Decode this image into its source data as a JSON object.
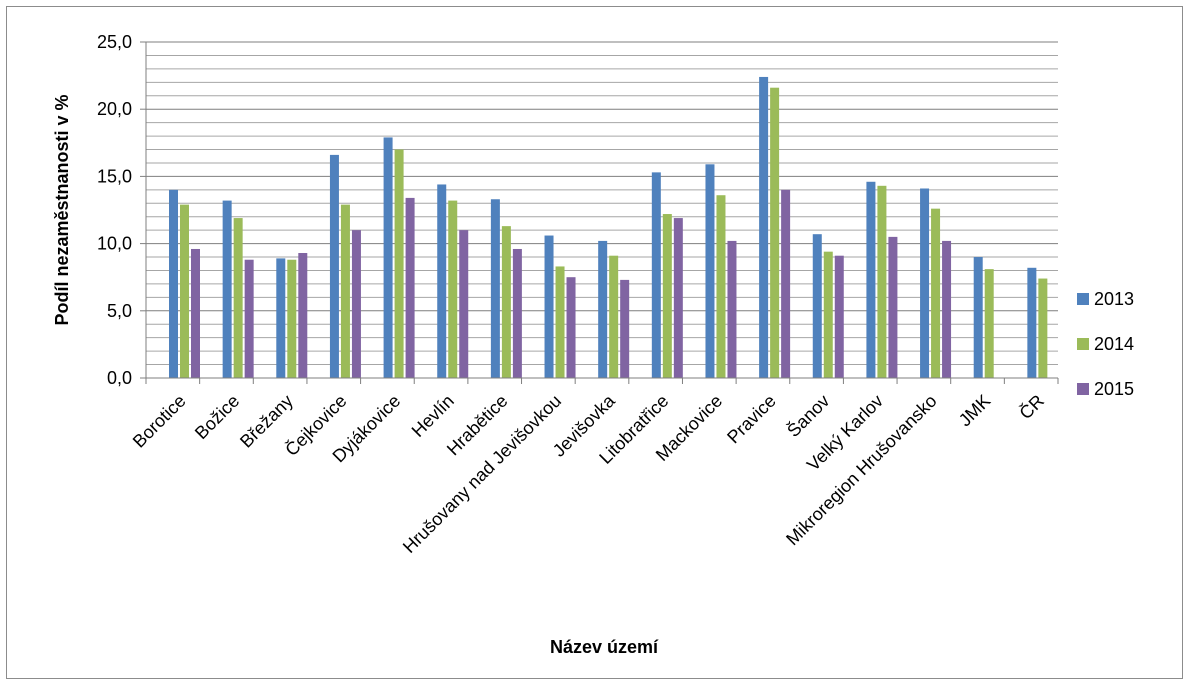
{
  "chart_data": {
    "type": "bar",
    "xlabel": "Název území",
    "ylabel": "Podíl nezaměstnanosti v %",
    "ylim": [
      0,
      25
    ],
    "yticks": [
      "0,0",
      "5,0",
      "10,0",
      "15,0",
      "20,0",
      "25,0"
    ],
    "ytick_values": [
      0,
      5,
      10,
      15,
      20,
      25
    ],
    "minor_grid_step": 1,
    "grid": true,
    "legend_position": "right",
    "categories": [
      "Borotice",
      "Božice",
      "Břežany",
      "Čejkovice",
      "Dyjákovice",
      "Hevlín",
      "Hrabětice",
      "Hrušovany nad Jevišovkou",
      "Jevišovka",
      "Litobratřice",
      "Mackovice",
      "Pravice",
      "Šanov",
      "Velký Karlov",
      "Mikroregion Hrušovansko",
      "JMK",
      "ČR"
    ],
    "series": [
      {
        "name": "2013",
        "color": "#4f81bd",
        "values": [
          14.0,
          13.2,
          8.9,
          16.6,
          17.9,
          14.4,
          13.3,
          10.6,
          10.2,
          15.3,
          15.9,
          22.4,
          10.7,
          14.6,
          14.1,
          9.0,
          8.2
        ]
      },
      {
        "name": "2014",
        "color": "#9bbb59",
        "values": [
          12.9,
          11.9,
          8.8,
          12.9,
          17.0,
          13.2,
          11.3,
          8.3,
          9.1,
          12.2,
          13.6,
          21.6,
          9.4,
          14.3,
          12.6,
          8.1,
          7.4
        ]
      },
      {
        "name": "2015",
        "color": "#8064a2",
        "values": [
          9.6,
          8.8,
          9.3,
          11.0,
          13.4,
          11.0,
          9.6,
          7.5,
          7.3,
          11.9,
          10.2,
          14.0,
          9.1,
          10.5,
          10.2,
          null,
          null
        ]
      }
    ]
  }
}
